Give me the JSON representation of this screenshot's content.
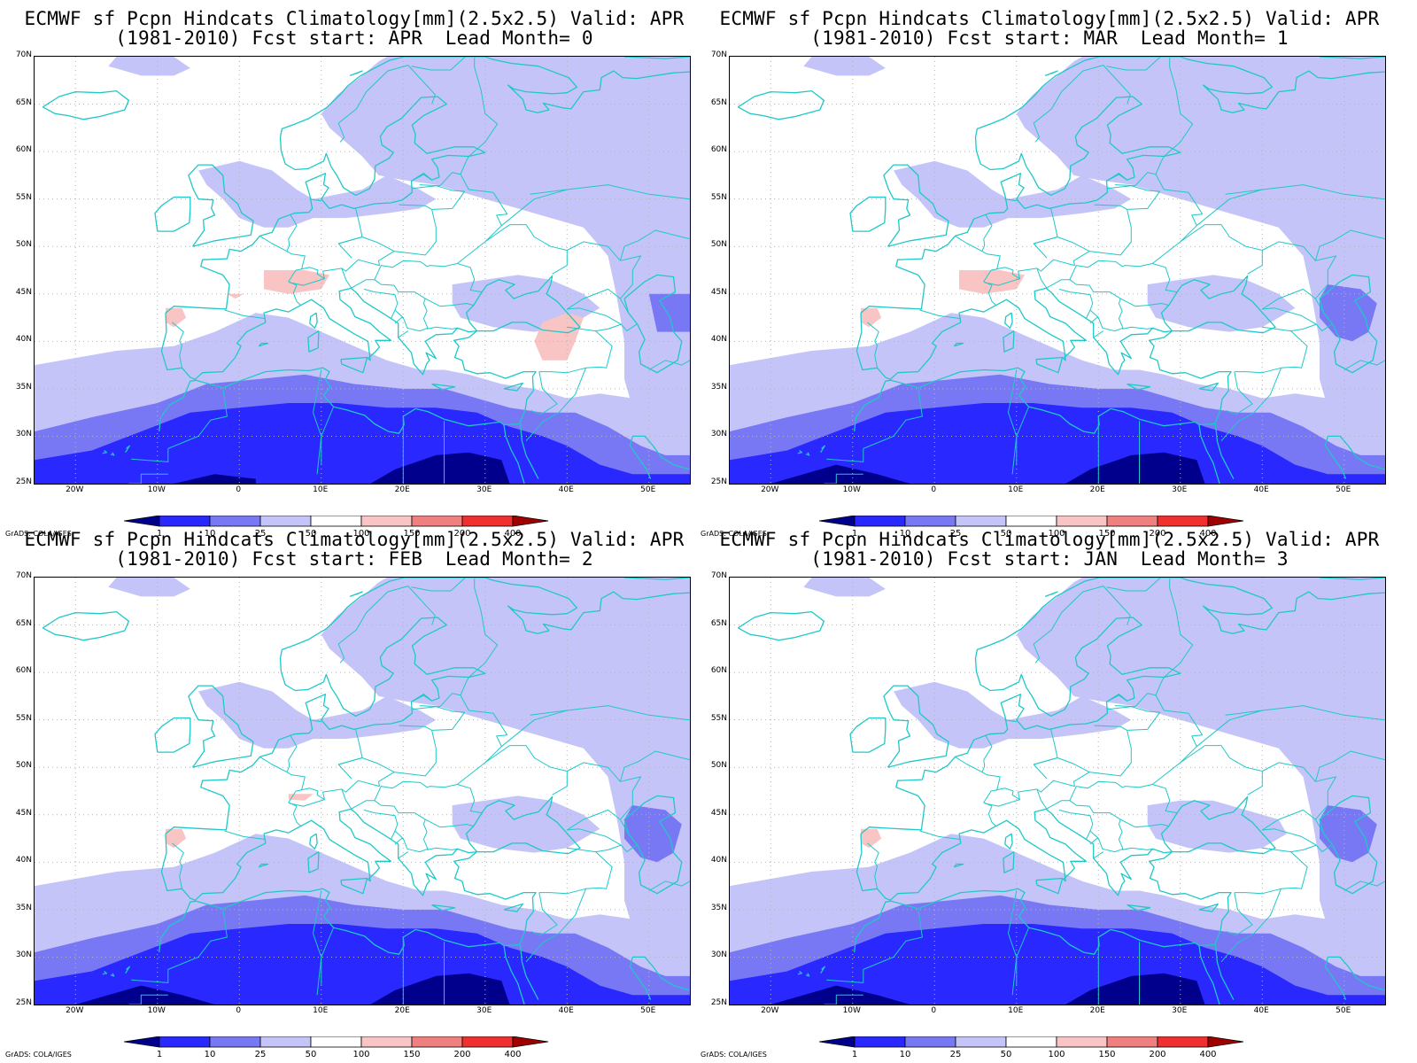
{
  "colors": {
    "darkest_blue": "#00008c",
    "dark_blue": "#2828ff",
    "mid_blue": "#7878f5",
    "light_blue": "#c4c4f8",
    "white": "#ffffff",
    "light_pink": "#f8c4c4",
    "pink": "#f08080",
    "red": "#f03030",
    "dark_red": "#a00000",
    "coastline": "#1fc8c8",
    "grid": "#b4b4b4"
  },
  "legend": {
    "ticks": [
      "1",
      "10",
      "25",
      "50",
      "100",
      "150",
      "200",
      "400"
    ]
  },
  "credit": "GrADS: COLA/IGES",
  "axes": {
    "lat_labels": [
      "70N",
      "65N",
      "60N",
      "55N",
      "50N",
      "45N",
      "40N",
      "35N",
      "30N",
      "25N"
    ],
    "lon_labels": [
      "20W",
      "10W",
      "0",
      "10E",
      "20E",
      "30E",
      "40E",
      "50E"
    ]
  },
  "panels": [
    {
      "title_line1": "ECMWF sf Pcpn Hindcats Climatology[mm](2.5x2.5) Valid: APR",
      "title_line2": "(1981-2010) Fcst start: APR  Lead Month= 0",
      "lead_month": 0
    },
    {
      "title_line1": "ECMWF sf Pcpn Hindcats Climatology[mm](2.5x2.5) Valid: APR",
      "title_line2": "(1981-2010) Fcst start: MAR  Lead Month= 1",
      "lead_month": 1
    },
    {
      "title_line1": "ECMWF sf Pcpn Hindcats Climatology[mm](2.5x2.5) Valid: APR",
      "title_line2": "(1981-2010) Fcst start: FEB  Lead Month= 2",
      "lead_month": 2
    },
    {
      "title_line1": "ECMWF sf Pcpn Hindcats Climatology[mm](2.5x2.5) Valid: APR",
      "title_line2": "(1981-2010) Fcst start: JAN  Lead Month= 3",
      "lead_month": 3
    }
  ]
}
